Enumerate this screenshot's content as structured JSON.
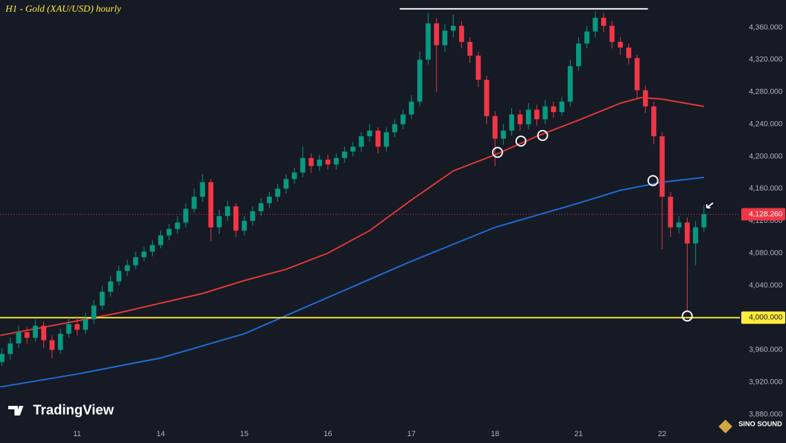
{
  "chart_data": {
    "type": "candlestick",
    "title": "H1 - Gold (XAU/USD) hourly",
    "x": [
      0.1,
      0.2,
      0.3,
      0.4,
      0.5,
      0.6,
      0.7,
      0.8,
      0.9,
      1.0,
      1.1,
      1.2,
      1.3,
      1.4,
      1.5,
      1.6,
      1.7,
      1.8,
      1.9,
      2.0,
      2.1,
      2.2,
      2.3,
      2.4,
      2.5,
      2.6,
      2.7,
      2.8,
      2.9,
      3.0,
      3.1,
      3.2,
      3.3,
      3.4,
      3.5,
      3.6,
      3.7,
      3.8,
      3.9,
      4.0,
      4.1,
      4.2,
      4.3,
      4.4,
      4.5,
      4.6,
      4.7,
      4.8,
      4.9,
      5.0,
      5.1,
      5.2,
      5.3,
      5.4,
      5.5,
      5.6,
      5.7,
      5.8,
      5.9,
      6.0,
      6.1,
      6.2,
      6.3,
      6.4,
      6.5,
      6.6,
      6.7,
      6.8,
      6.9,
      7.0,
      7.1,
      7.2,
      7.3,
      7.4,
      7.5,
      7.6,
      7.7,
      7.8,
      7.9,
      8.0,
      8.1,
      8.2,
      8.3,
      8.4,
      8.5
    ],
    "open": [
      3945,
      3955,
      3968,
      3982,
      3975,
      3990,
      3972,
      3960,
      3980,
      3992,
      3985,
      3998,
      4015,
      4032,
      4045,
      4058,
      4065,
      4075,
      4082,
      4090,
      4102,
      4110,
      4118,
      4135,
      4150,
      4168,
      4112,
      4126,
      4138,
      4108,
      4120,
      4132,
      4142,
      4150,
      4160,
      4172,
      4180,
      4198,
      4188,
      4196,
      4190,
      4198,
      4206,
      4212,
      4225,
      4232,
      4212,
      4230,
      4240,
      4252,
      4268,
      4320,
      4365,
      4338,
      4356,
      4362,
      4342,
      4325,
      4295,
      4250,
      4222,
      4232,
      4252,
      4240,
      4258,
      4246,
      4262,
      4255,
      4268,
      4312,
      4340,
      4355,
      4372,
      4362,
      4342,
      4335,
      4322,
      4282,
      4262,
      4225,
      4150,
      4112,
      4118,
      4092,
      4112
    ],
    "high": [
      3962,
      3975,
      3990,
      3988,
      3998,
      3995,
      3978,
      3986,
      4000,
      4002,
      4006,
      4022,
      4040,
      4052,
      4064,
      4072,
      4082,
      4088,
      4096,
      4108,
      4116,
      4126,
      4142,
      4160,
      4178,
      4172,
      4134,
      4145,
      4142,
      4126,
      4138,
      4148,
      4156,
      4166,
      4178,
      4186,
      4212,
      4204,
      4202,
      4202,
      4204,
      4212,
      4218,
      4230,
      4240,
      4236,
      4236,
      4246,
      4258,
      4276,
      4330,
      4378,
      4372,
      4364,
      4376,
      4368,
      4348,
      4330,
      4300,
      4256,
      4240,
      4260,
      4258,
      4266,
      4264,
      4270,
      4268,
      4274,
      4320,
      4348,
      4362,
      4380,
      4378,
      4368,
      4348,
      4340,
      4326,
      4288,
      4268,
      4230,
      4156,
      4126,
      4124,
      4120,
      4140
    ],
    "low": [
      3940,
      3948,
      3962,
      3968,
      3970,
      3962,
      3950,
      3955,
      3975,
      3978,
      3980,
      3992,
      4010,
      4026,
      4040,
      4052,
      4060,
      4070,
      4076,
      4086,
      4096,
      4104,
      4112,
      4130,
      4144,
      4095,
      4104,
      4120,
      4100,
      4102,
      4114,
      4126,
      4136,
      4144,
      4154,
      4166,
      4174,
      4180,
      4182,
      4184,
      4184,
      4192,
      4200,
      4206,
      4218,
      4204,
      4206,
      4224,
      4234,
      4246,
      4262,
      4314,
      4280,
      4330,
      4348,
      4334,
      4316,
      4286,
      4240,
      4188,
      4214,
      4226,
      4232,
      4234,
      4238,
      4240,
      4248,
      4250,
      4262,
      4306,
      4334,
      4348,
      4354,
      4334,
      4326,
      4314,
      4272,
      4254,
      4215,
      4085,
      4100,
      4104,
      4008,
      4065,
      4106
    ],
    "close": [
      3955,
      3968,
      3982,
      3975,
      3990,
      3972,
      3960,
      3980,
      3992,
      3985,
      3998,
      4015,
      4032,
      4045,
      4058,
      4065,
      4075,
      4082,
      4090,
      4102,
      4110,
      4118,
      4135,
      4150,
      4168,
      4112,
      4126,
      4138,
      4108,
      4120,
      4132,
      4142,
      4150,
      4160,
      4172,
      4180,
      4198,
      4188,
      4196,
      4190,
      4198,
      4206,
      4212,
      4225,
      4232,
      4212,
      4230,
      4240,
      4252,
      4268,
      4320,
      4365,
      4338,
      4356,
      4362,
      4342,
      4325,
      4295,
      4250,
      4222,
      4232,
      4252,
      4240,
      4258,
      4246,
      4262,
      4255,
      4268,
      4312,
      4340,
      4355,
      4372,
      4362,
      4342,
      4335,
      4322,
      4282,
      4262,
      4225,
      4150,
      4112,
      4118,
      4092,
      4112,
      4128.26
    ],
    "up_color": "#089981",
    "down_color": "#f23645",
    "lines": [
      {
        "color": "#e53935",
        "x": [
          0.08,
          1,
          1.5,
          2,
          2.5,
          3,
          3.5,
          4,
          4.5,
          5,
          5.5,
          6,
          6.5,
          7,
          7.5,
          7.75,
          8,
          8.5
        ],
        "values": [
          3978,
          3996,
          4006,
          4018,
          4030,
          4046,
          4060,
          4080,
          4108,
          4146,
          4182,
          4202,
          4225,
          4245,
          4266,
          4273,
          4271,
          4262
        ]
      },
      {
        "color": "#1e6fd9",
        "x": [
          0.08,
          1,
          2,
          3,
          4,
          5,
          6,
          7,
          7.5,
          8,
          8.5
        ],
        "values": [
          3914,
          3930,
          3950,
          3980,
          4025,
          4070,
          4112,
          4142,
          4158,
          4168,
          4174
        ]
      }
    ],
    "hlines": [
      {
        "value": 4000,
        "color": "#ffeb3b",
        "label": "4,000.000"
      }
    ],
    "resistance": {
      "x": [
        4.86,
        7.83
      ],
      "value": 4383,
      "color": "#ffffff"
    },
    "last_price": {
      "value": 4128.26,
      "label": "4,128.260",
      "color": "#f23645"
    },
    "markers": {
      "x": [
        6.03,
        6.31,
        6.57,
        7.89,
        8.3
      ],
      "y": [
        4205,
        4219,
        4226,
        4170,
        4002
      ]
    },
    "xlim": [
      0.077,
      8.93
    ],
    "ylim": [
      3865,
      4394
    ],
    "xticks": [
      {
        "value": 1,
        "label": "11"
      },
      {
        "value": 2,
        "label": "14"
      },
      {
        "value": 3,
        "label": "15"
      },
      {
        "value": 4,
        "label": "16"
      },
      {
        "value": 5,
        "label": "17"
      },
      {
        "value": 6,
        "label": "18"
      },
      {
        "value": 7,
        "label": "21"
      },
      {
        "value": 8,
        "label": "22"
      }
    ],
    "yticks": [
      {
        "value": 3880,
        "label": "3,880.000"
      },
      {
        "value": 3920,
        "label": "3,920.000"
      },
      {
        "value": 3960,
        "label": "3,960.000"
      },
      {
        "value": 4000,
        "label": "4,000.000"
      },
      {
        "value": 4040,
        "label": "4,040.000"
      },
      {
        "value": 4080,
        "label": "4,080.000"
      },
      {
        "value": 4120,
        "label": "4,120.000"
      },
      {
        "value": 4160,
        "label": "4,160.000"
      },
      {
        "value": 4200,
        "label": "4,200.000"
      },
      {
        "value": 4240,
        "label": "4,240.000"
      },
      {
        "value": 4280,
        "label": "4,280.000"
      },
      {
        "value": 4320,
        "label": "4,320.000"
      },
      {
        "value": 4360,
        "label": "4,360.000"
      }
    ],
    "grid": false
  },
  "branding": {
    "left": "TradingView",
    "right": "SINO SOUND"
  }
}
